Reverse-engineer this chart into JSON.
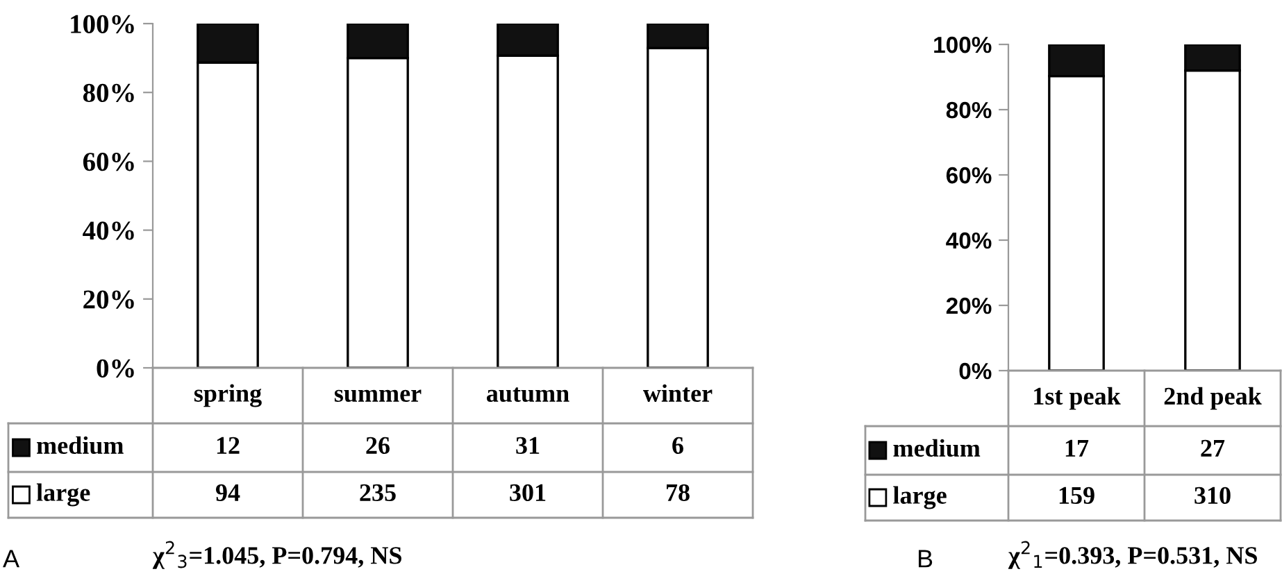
{
  "chart_data": [
    {
      "type": "bar",
      "stacked": true,
      "categories": [
        "spring",
        "summer",
        "autumn",
        "winter"
      ],
      "series": [
        {
          "name": "large",
          "color": "#ffffff",
          "values": [
            88.7,
            90.0,
            90.7,
            92.9
          ]
        },
        {
          "name": "medium",
          "color": "#111111",
          "values": [
            11.3,
            10.0,
            9.3,
            7.1
          ]
        }
      ],
      "ylim": [
        0,
        100
      ],
      "yticks": [
        {
          "value": 0,
          "label": "0%"
        },
        {
          "value": 20,
          "label": "20%"
        },
        {
          "value": 40,
          "label": "40%"
        },
        {
          "value": 60,
          "label": "60%"
        },
        {
          "value": 80,
          "label": "80%"
        },
        {
          "value": 100,
          "label": "100%"
        }
      ],
      "legend": "bottom",
      "grid": false,
      "annotations": [
        "A",
        "χ$^{2}$$_{3}$=1.045, P=0.794, NS",
        "12",
        "26",
        "31",
        "6",
        "94",
        "235",
        "301",
        "78"
      ]
    },
    {
      "type": "bar",
      "stacked": true,
      "categories": [
        "1st peak",
        "2nd peak"
      ],
      "series": [
        {
          "name": "large",
          "color": "#ffffff",
          "values": [
            90.3,
            92.0
          ]
        },
        {
          "name": "medium",
          "color": "#111111",
          "values": [
            9.7,
            8.0
          ]
        }
      ],
      "ylim": [
        0,
        100
      ],
      "yticks": [
        {
          "value": 0,
          "label": "0%"
        },
        {
          "value": 20,
          "label": "20%"
        },
        {
          "value": 40,
          "label": "40%"
        },
        {
          "value": 60,
          "label": "60%"
        },
        {
          "value": 80,
          "label": "80%"
        },
        {
          "value": 100,
          "label": "100%"
        }
      ],
      "legend": "bottom",
      "grid": false,
      "annotations": [
        "B",
        "χ$^{2}$$_{1}$=0.393, P=0.531, NS",
        "17",
        "27",
        "159",
        "310"
      ]
    }
  ]
}
